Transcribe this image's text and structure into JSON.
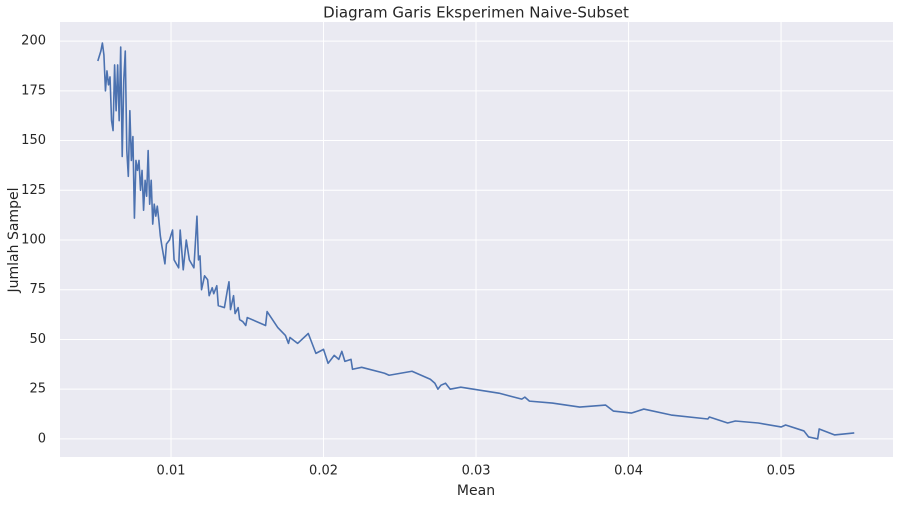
{
  "chart_data": {
    "type": "line",
    "title": "Diagram Garis Eksperimen Naive-Subset",
    "x_label": "Mean",
    "y_label": "Jumlah Sampel",
    "color": "#4c72b0",
    "grid": true,
    "xlim": [
      0.00272,
      0.05734
    ],
    "ylim": [
      -9.1,
      209.6
    ],
    "xticks": [
      0.01,
      0.02,
      0.03,
      0.04,
      0.05
    ],
    "yticks": [
      0,
      25,
      50,
      75,
      100,
      125,
      150,
      175,
      200
    ],
    "x": [
      0.0052,
      0.0054,
      0.0055,
      0.0056,
      0.0057,
      0.0058,
      0.0059,
      0.006,
      0.0061,
      0.0062,
      0.0063,
      0.0064,
      0.0065,
      0.0066,
      0.0067,
      0.0068,
      0.0069,
      0.007,
      0.0071,
      0.0072,
      0.0073,
      0.0074,
      0.0075,
      0.0076,
      0.0077,
      0.0078,
      0.0079,
      0.008,
      0.0081,
      0.0082,
      0.0083,
      0.0084,
      0.0085,
      0.0086,
      0.0087,
      0.0088,
      0.0089,
      0.009,
      0.0091,
      0.0092,
      0.0093,
      0.0094,
      0.0096,
      0.0097,
      0.0099,
      0.0101,
      0.0102,
      0.0105,
      0.0106,
      0.0108,
      0.011,
      0.0112,
      0.0115,
      0.0117,
      0.0118,
      0.0119,
      0.012,
      0.0122,
      0.0124,
      0.0125,
      0.0127,
      0.0128,
      0.013,
      0.0131,
      0.0135,
      0.0137,
      0.0138,
      0.0139,
      0.0141,
      0.0142,
      0.0144,
      0.0145,
      0.0147,
      0.0149,
      0.015,
      0.0162,
      0.0163,
      0.017,
      0.0175,
      0.0177,
      0.0178,
      0.0183,
      0.019,
      0.0195,
      0.02,
      0.0203,
      0.0207,
      0.021,
      0.0212,
      0.0214,
      0.0218,
      0.0219,
      0.0225,
      0.024,
      0.0243,
      0.0258,
      0.027,
      0.0273,
      0.0275,
      0.0277,
      0.028,
      0.0283,
      0.029,
      0.0315,
      0.033,
      0.0332,
      0.0335,
      0.035,
      0.0368,
      0.0385,
      0.039,
      0.0402,
      0.041,
      0.0428,
      0.0452,
      0.0453,
      0.0465,
      0.047,
      0.0485,
      0.05,
      0.0503,
      0.0515,
      0.0518,
      0.0524,
      0.0525,
      0.0535,
      0.0548
    ],
    "values": [
      190,
      195,
      199,
      193,
      175,
      185,
      178,
      182,
      160,
      155,
      188,
      165,
      188,
      160,
      197,
      142,
      180,
      195,
      145,
      132,
      165,
      140,
      152,
      111,
      140,
      135,
      140,
      125,
      135,
      115,
      130,
      122,
      145,
      118,
      130,
      108,
      118,
      112,
      117,
      110,
      102,
      97,
      88,
      98,
      100,
      105,
      90,
      86,
      105,
      85,
      100,
      90,
      86,
      112,
      90,
      92,
      75,
      82,
      80,
      72,
      76,
      73,
      77,
      67,
      66,
      75,
      79,
      65,
      72,
      63,
      66,
      60,
      59,
      57,
      61,
      57,
      64,
      56,
      52,
      48,
      51,
      48,
      53,
      43,
      45,
      38,
      42,
      40,
      44,
      39,
      40,
      35,
      36,
      33,
      32,
      34,
      30,
      28,
      25,
      27,
      28,
      25,
      26,
      23,
      20,
      21,
      19,
      18,
      16,
      17,
      14,
      13,
      15,
      12,
      10,
      11,
      8,
      9,
      8,
      6,
      7,
      4,
      1,
      0,
      5,
      2,
      3
    ]
  }
}
